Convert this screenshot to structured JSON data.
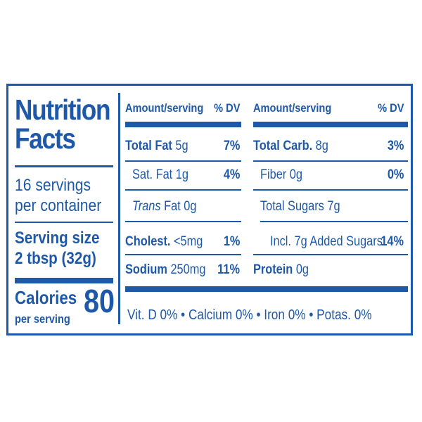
{
  "title_line1": "Nutrition",
  "title_line2": "Facts",
  "servings_line1": "16 servings",
  "servings_line2": "per container",
  "serving_size_label": "Serving size",
  "serving_size_value": "2 tbsp (32g)",
  "calories_label": "Calories",
  "calories_sublabel": "per serving",
  "calories_value": "80",
  "headers": {
    "amount_left": "Amount/serving",
    "dv_left": "% DV",
    "amount_right": "Amount/serving",
    "dv_right": "% DV"
  },
  "left_rows": [
    {
      "name": "Total Fat",
      "amount": " 5g",
      "dv": "7%"
    },
    {
      "name": "Sat. Fat",
      "amount": " 1g",
      "dv": "4%"
    },
    {
      "name": "Trans",
      "amount": " Fat 0g",
      "dv": ""
    },
    {
      "name": "Cholest.",
      "amount": " <5mg",
      "dv": "1%"
    },
    {
      "name": "Sodium",
      "amount": " 250mg",
      "dv": "11%"
    }
  ],
  "right_rows": [
    {
      "name": "Total Carb.",
      "amount": " 8g",
      "dv": "3%"
    },
    {
      "name": "Fiber",
      "amount": " 0g",
      "dv": "0%"
    },
    {
      "name": "Total Sugars",
      "amount": " 7g",
      "dv": ""
    },
    {
      "name": "Incl. 7g Added Sugars",
      "amount": "",
      "dv": "14%"
    },
    {
      "name": "Protein",
      "amount": " 0g",
      "dv": ""
    }
  ],
  "footer": "Vit. D 0% • Calcium 0% • Iron 0% • Potas. 0%",
  "colors": {
    "label_blue": "#1e58a8",
    "background": "#ffffff"
  }
}
